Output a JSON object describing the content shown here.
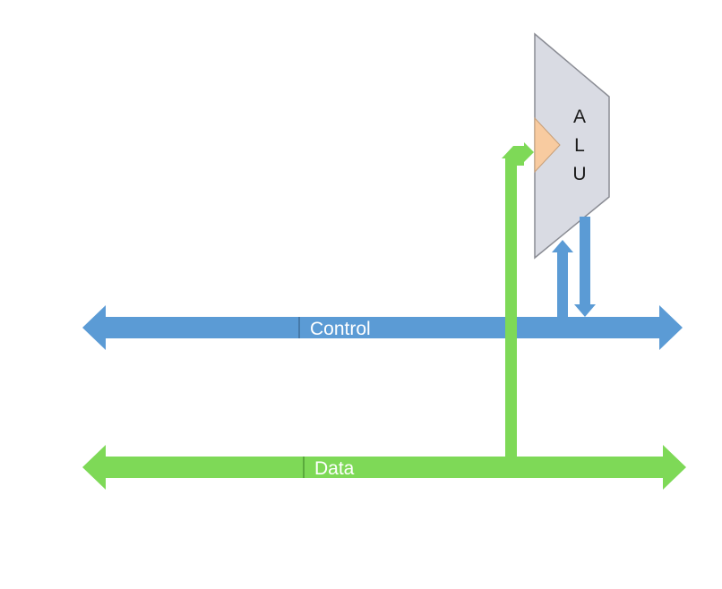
{
  "colors": {
    "control_bus": "#5b9bd5",
    "data_bus": "#7ed957",
    "alu_fill": "#d9dbe3",
    "alu_stroke": "#8a8c94",
    "clock_marker": "#f8cba0",
    "label_text": "#ffffff"
  },
  "buses": {
    "control": {
      "label": "Control"
    },
    "data": {
      "label": "Data"
    }
  },
  "alu": {
    "letter_1": "A",
    "letter_2": "L",
    "letter_3": "U"
  }
}
